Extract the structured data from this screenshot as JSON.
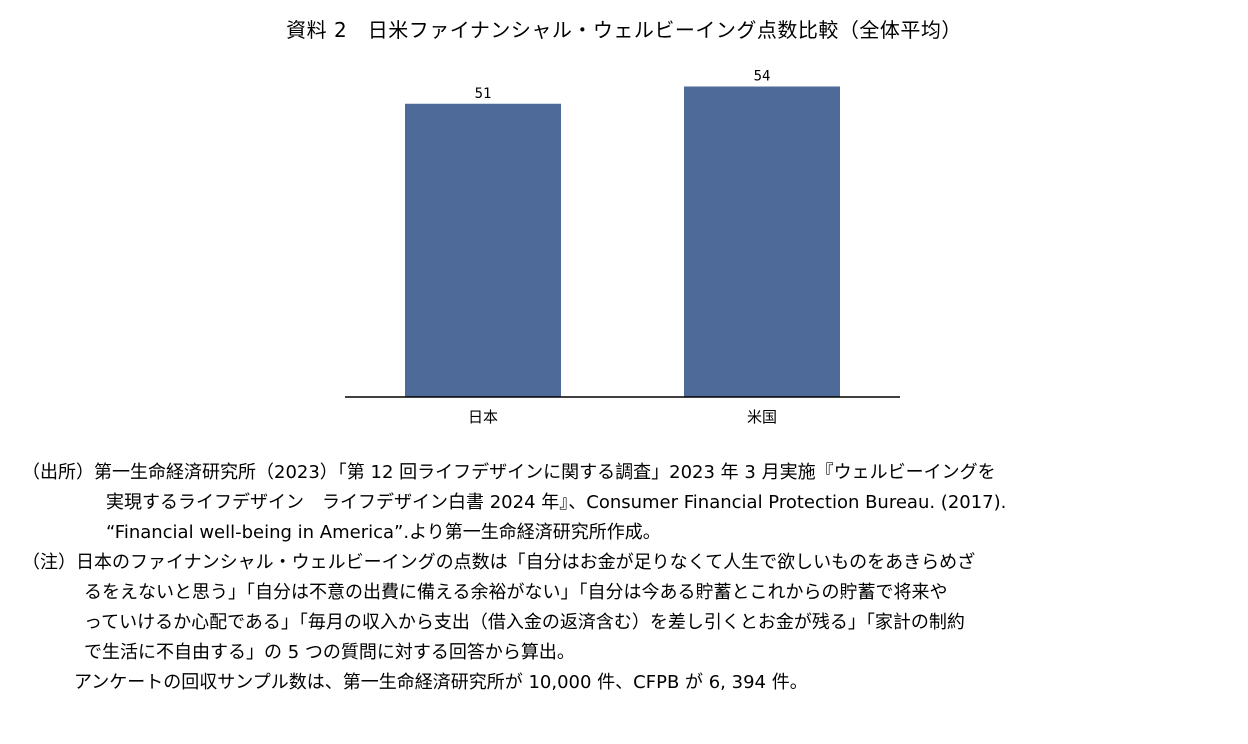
{
  "title": "資料 2　日米ファイナンシャル・ウェルビーイング点数比較（全体平均）",
  "chart_data": {
    "type": "bar",
    "title": "資料 2　日米ファイナンシャル・ウェルビーイング点数比較（全体平均）",
    "categories": [
      "日本",
      "米国"
    ],
    "values": [
      51,
      54
    ],
    "data_labels": [
      "51",
      "54"
    ],
    "bar_color": "#4d6a98",
    "ylim": [
      0,
      60
    ],
    "grid": false,
    "legend": "none"
  },
  "notes": {
    "source_line1": "（出所）第一生命経済研究所（2023）「第 12 回ライフデザインに関する調査」2023 年 3 月実施『ウェルビーイングを",
    "source_line2": "実現するライフデザイン　ライフデザイン白書 2024 年』、Consumer Financial Protection Bureau. (2017).",
    "source_line3": "“Financial well-being in America”.より第一生命経済研究所作成。",
    "note_line1": "（注）日本のファイナンシャル・ウェルビーイングの点数は「自分はお金が足りなくて人生で欲しいものをあきらめざ",
    "note_line2": "るをえないと思う」「自分は不意の出費に備える余裕がない」「自分は今ある貯蓄とこれからの貯蓄で将来や",
    "note_line3": "っていけるか心配である」「毎月の収入から支出（借入金の返済含む）を差し引くとお金が残る」「家計の制約",
    "note_line4": "で生活に不自由する」の 5 つの質問に対する回答から算出。",
    "sample_line": "アンケートの回収サンプル数は、第一生命経済研究所が 10,000 件、CFPB が 6, 394 件。"
  }
}
